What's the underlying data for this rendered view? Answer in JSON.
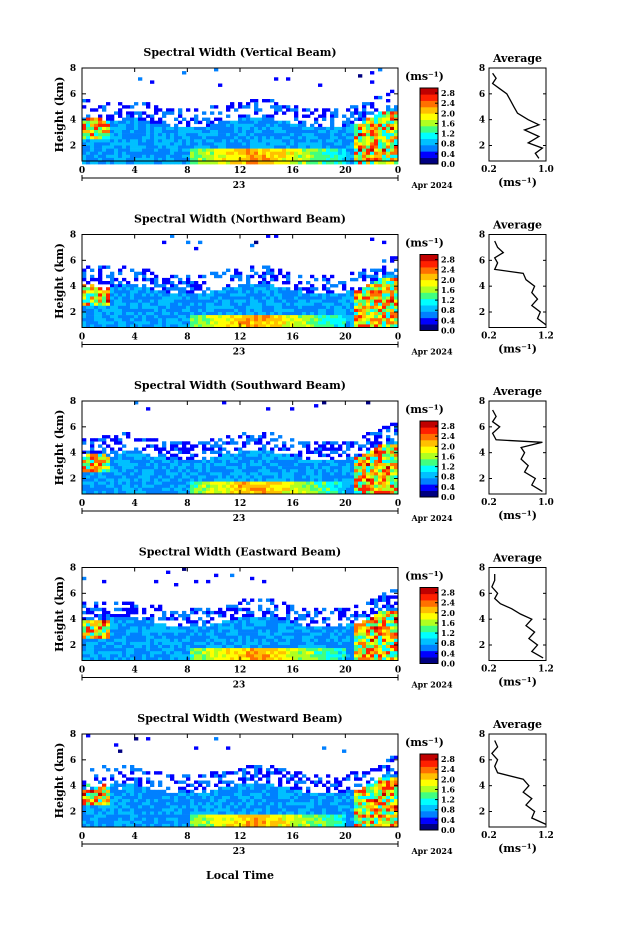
{
  "figure": {
    "common_xlabel": "Local Time",
    "date_label": "Apr 2024",
    "day_label": "23",
    "colorbar_unit_label": "(ms⁻¹)",
    "colormap": [
      "#000080",
      "#0000ff",
      "#0080ff",
      "#00c0ff",
      "#00ffff",
      "#40ff80",
      "#b0ff20",
      "#ffff00",
      "#ffc000",
      "#ff7000",
      "#ff2000",
      "#c00000"
    ]
  },
  "chart_data": [
    {
      "type": "heatmap",
      "title": "Spectral Width (Vertical Beam)",
      "xlabel": "",
      "ylabel": "Height (km)",
      "xlim": [
        0,
        24
      ],
      "ylim": [
        0.8,
        8.0
      ],
      "xticks": [
        "0",
        "4",
        "8",
        "12",
        "16",
        "20",
        "0"
      ],
      "yticks": [
        2,
        4,
        6,
        8
      ],
      "colorbar": {
        "ticks": [
          "0.0",
          "0.4",
          "0.8",
          "1.2",
          "1.6",
          "2.0",
          "2.4",
          "2.8"
        ],
        "range": [
          0.0,
          3.0
        ]
      },
      "average_profile": {
        "title": "Average",
        "xlabel": "(ms⁻¹)",
        "xticks": [
          "0.2",
          "1.0"
        ],
        "xlim": [
          0.2,
          1.0
        ],
        "ylim": [
          0.8,
          8.0
        ],
        "yticks": [
          2,
          4,
          6,
          8
        ],
        "values": [
          [
            0.9,
            1.0
          ],
          [
            0.85,
            1.4
          ],
          [
            0.95,
            1.8
          ],
          [
            0.75,
            2.2
          ],
          [
            0.9,
            2.7
          ],
          [
            0.7,
            3.2
          ],
          [
            0.9,
            3.6
          ],
          [
            0.75,
            4.0
          ],
          [
            0.6,
            4.5
          ],
          [
            0.55,
            5.0
          ],
          [
            0.5,
            5.5
          ],
          [
            0.45,
            6.0
          ],
          [
            0.35,
            6.4
          ],
          [
            0.25,
            6.8
          ],
          [
            0.3,
            7.2
          ],
          [
            0.25,
            7.6
          ]
        ]
      }
    },
    {
      "type": "heatmap",
      "title": "Spectral Width (Northward Beam)",
      "xlabel": "",
      "ylabel": "Height (km)",
      "xlim": [
        0,
        24
      ],
      "ylim": [
        0.8,
        8.0
      ],
      "xticks": [
        "0",
        "4",
        "8",
        "12",
        "16",
        "20",
        "0"
      ],
      "yticks": [
        2,
        4,
        6,
        8
      ],
      "colorbar": {
        "ticks": [
          "0.0",
          "0.4",
          "0.8",
          "1.2",
          "1.6",
          "2.0",
          "2.4",
          "2.8"
        ],
        "range": [
          0.0,
          3.0
        ]
      },
      "average_profile": {
        "title": "Average",
        "xlabel": "(ms⁻¹)",
        "xticks": [
          "0.2",
          "1.2"
        ],
        "xlim": [
          0.2,
          1.2
        ],
        "ylim": [
          0.8,
          8.0
        ],
        "yticks": [
          2,
          4,
          6,
          8
        ],
        "values": [
          [
            1.2,
            1.0
          ],
          [
            1.05,
            1.5
          ],
          [
            1.1,
            2.0
          ],
          [
            0.95,
            2.5
          ],
          [
            1.05,
            3.0
          ],
          [
            0.95,
            3.5
          ],
          [
            1.0,
            4.0
          ],
          [
            0.85,
            4.5
          ],
          [
            0.8,
            5.0
          ],
          [
            0.3,
            5.3
          ],
          [
            0.35,
            5.8
          ],
          [
            0.3,
            6.2
          ],
          [
            0.45,
            6.6
          ],
          [
            0.35,
            7.0
          ],
          [
            0.3,
            7.5
          ]
        ]
      }
    },
    {
      "type": "heatmap",
      "title": "Spectral Width (Southward Beam)",
      "xlabel": "",
      "ylabel": "Height (km)",
      "xlim": [
        0,
        24
      ],
      "ylim": [
        0.8,
        8.0
      ],
      "xticks": [
        "0",
        "4",
        "8",
        "12",
        "16",
        "20",
        "0"
      ],
      "yticks": [
        2,
        4,
        6,
        8
      ],
      "colorbar": {
        "ticks": [
          "0.0",
          "0.4",
          "0.8",
          "1.2",
          "1.6",
          "2.0",
          "2.4",
          "2.8"
        ],
        "range": [
          0.0,
          3.0
        ]
      },
      "average_profile": {
        "title": "Average",
        "xlabel": "(ms⁻¹)",
        "xticks": [
          "0.2",
          "1.0"
        ],
        "xlim": [
          0.2,
          1.0
        ],
        "ylim": [
          0.8,
          8.0
        ],
        "yticks": [
          2,
          4,
          6,
          8
        ],
        "values": [
          [
            0.95,
            1.0
          ],
          [
            0.8,
            1.5
          ],
          [
            0.85,
            2.0
          ],
          [
            0.7,
            2.5
          ],
          [
            0.75,
            3.0
          ],
          [
            0.65,
            3.5
          ],
          [
            0.7,
            4.0
          ],
          [
            0.65,
            4.4
          ],
          [
            0.95,
            4.8
          ],
          [
            0.3,
            5.0
          ],
          [
            0.25,
            5.5
          ],
          [
            0.35,
            6.0
          ],
          [
            0.25,
            6.4
          ],
          [
            0.3,
            6.8
          ],
          [
            0.25,
            7.3
          ]
        ]
      }
    },
    {
      "type": "heatmap",
      "title": "Spectral Width (Eastward Beam)",
      "xlabel": "",
      "ylabel": "Height (km)",
      "xlim": [
        0,
        24
      ],
      "ylim": [
        0.8,
        8.0
      ],
      "xticks": [
        "0",
        "4",
        "8",
        "12",
        "16",
        "20",
        "0"
      ],
      "yticks": [
        2,
        4,
        6,
        8
      ],
      "colorbar": {
        "ticks": [
          "0.0",
          "0.4",
          "0.8",
          "1.2",
          "1.6",
          "2.0",
          "2.4",
          "2.8"
        ],
        "range": [
          0.0,
          3.0
        ]
      },
      "average_profile": {
        "title": "Average",
        "xlabel": "(ms⁻¹)",
        "xticks": [
          "0.2",
          "1.2"
        ],
        "xlim": [
          0.2,
          1.2
        ],
        "ylim": [
          0.8,
          8.0
        ],
        "yticks": [
          2,
          4,
          6,
          8
        ],
        "values": [
          [
            1.15,
            1.0
          ],
          [
            0.95,
            1.5
          ],
          [
            1.05,
            2.0
          ],
          [
            0.9,
            2.5
          ],
          [
            1.0,
            3.0
          ],
          [
            0.85,
            3.5
          ],
          [
            0.95,
            4.0
          ],
          [
            0.75,
            4.4
          ],
          [
            0.6,
            4.8
          ],
          [
            0.4,
            5.2
          ],
          [
            0.3,
            5.6
          ],
          [
            0.35,
            6.0
          ],
          [
            0.25,
            6.5
          ],
          [
            0.3,
            7.0
          ],
          [
            0.3,
            7.5
          ]
        ]
      }
    },
    {
      "type": "heatmap",
      "title": "Spectral Width (Westward Beam)",
      "xlabel": "Local Time",
      "ylabel": "Height (km)",
      "xlim": [
        0,
        24
      ],
      "ylim": [
        0.8,
        8.0
      ],
      "xticks": [
        "0",
        "4",
        "8",
        "12",
        "16",
        "20",
        "0"
      ],
      "yticks": [
        2,
        4,
        6,
        8
      ],
      "colorbar": {
        "ticks": [
          "0.0",
          "0.4",
          "0.8",
          "1.2",
          "1.6",
          "2.0",
          "2.4",
          "2.8"
        ],
        "range": [
          0.0,
          3.0
        ]
      },
      "average_profile": {
        "title": "Average",
        "xlabel": "(ms⁻¹)",
        "xticks": [
          "0.2",
          "1.2"
        ],
        "xlim": [
          0.2,
          1.2
        ],
        "ylim": [
          0.8,
          8.0
        ],
        "yticks": [
          2,
          4,
          6,
          8
        ],
        "values": [
          [
            1.2,
            1.0
          ],
          [
            0.95,
            1.5
          ],
          [
            1.0,
            2.0
          ],
          [
            0.85,
            2.5
          ],
          [
            0.95,
            3.0
          ],
          [
            0.8,
            3.5
          ],
          [
            0.9,
            4.0
          ],
          [
            0.8,
            4.5
          ],
          [
            0.35,
            5.0
          ],
          [
            0.3,
            5.5
          ],
          [
            0.35,
            6.0
          ],
          [
            0.25,
            6.5
          ],
          [
            0.35,
            7.0
          ],
          [
            0.3,
            7.5
          ]
        ]
      }
    }
  ]
}
